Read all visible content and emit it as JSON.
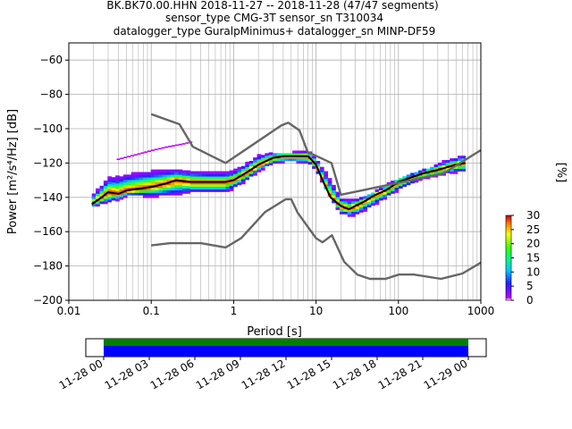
{
  "title": {
    "line1": "BK.BK70.00.HHN   2018-11-27 -- 2018-11-28  (47/47 segments)",
    "line2": "sensor_type CMG-3T sensor_sn T310034",
    "line3": "datalogger_type GuralpMinimus+ datalogger_sn MINP-DF59"
  },
  "colorbar": {
    "label": "[%]",
    "ticks": [
      "0",
      "5",
      "10",
      "15",
      "20",
      "25",
      "30"
    ],
    "range": [
      0,
      30
    ]
  },
  "timeline": {
    "tick_labels": [
      "11-28 00",
      "11-28 03",
      "11-28 06",
      "11-28 09",
      "11-28 12",
      "11-28 15",
      "11-28 18",
      "11-28 21",
      "11-29 00"
    ],
    "bar_colors": {
      "coverage": "#0000ff",
      "gaps_top": "#008000"
    }
  },
  "chart_data": {
    "type": "heatmap",
    "subtype": "probabilistic power spectral density",
    "xlabel": "Period [s]",
    "ylabel": "Power [m²/s⁴/Hz] [dB]",
    "xscale": "log",
    "xlim": [
      0.01,
      1000
    ],
    "ylim": [
      -200,
      -50
    ],
    "x_tick_labels": [
      "0.01",
      "0.1",
      "1",
      "10",
      "100",
      "1000"
    ],
    "x_ticks": [
      0.01,
      0.1,
      1,
      10,
      100,
      1000
    ],
    "y_ticks": [
      -200,
      -180,
      -160,
      -140,
      -120,
      -100,
      -80,
      -60
    ],
    "y_tick_labels": [
      "−200",
      "−180",
      "−160",
      "−140",
      "−120",
      "−100",
      "−80",
      "−60"
    ],
    "grid": true,
    "series": [
      {
        "role": "mode",
        "color": "#000000",
        "x": [
          0.019,
          0.025,
          0.03,
          0.04,
          0.05,
          0.07,
          0.1,
          0.15,
          0.2,
          0.3,
          0.5,
          0.8,
          1.0,
          1.5,
          2,
          3,
          4,
          5,
          6,
          8,
          10,
          12,
          15,
          20,
          25,
          30,
          40,
          50,
          70,
          100,
          150,
          200,
          300,
          500,
          650
        ],
        "y": [
          -144,
          -140,
          -137,
          -138,
          -136,
          -135,
          -134,
          -132,
          -130,
          -131,
          -131,
          -131,
          -130,
          -125,
          -121,
          -117,
          -116,
          -116,
          -116,
          -116,
          -121,
          -130,
          -140,
          -145,
          -147,
          -145,
          -142,
          -139,
          -136,
          -131,
          -128,
          -126,
          -124,
          -121,
          -120
        ]
      },
      {
        "role": "nhnm",
        "color": "#666666",
        "x": [
          0.1,
          0.22,
          0.32,
          0.8,
          3.8,
          4.6,
          6.3,
          7.9,
          15.4,
          20,
          354.8,
          1000
        ],
        "y": [
          -91.5,
          -97.4,
          -110.5,
          -120,
          -98,
          -96.5,
          -101,
          -113.5,
          -120,
          -138.5,
          -126,
          -112.5
        ]
      },
      {
        "role": "nlnm",
        "color": "#666666",
        "x": [
          0.1,
          0.17,
          0.4,
          0.8,
          1.24,
          2.4,
          4.3,
          5,
          6,
          10,
          12,
          15.6,
          21.9,
          31.6,
          45,
          70,
          101,
          154,
          328,
          600,
          1000
        ],
        "y": [
          -168,
          -166.7,
          -166.7,
          -169.2,
          -163.7,
          -148.6,
          -141.1,
          -141.1,
          -149,
          -163.8,
          -166.2,
          -162.1,
          -177.5,
          -185,
          -187.5,
          -187.5,
          -185,
          -185,
          -187.5,
          -184.4,
          -178
        ]
      }
    ],
    "density": {
      "lower_edge": {
        "x": [
          0.019,
          0.03,
          0.05,
          0.1,
          0.2,
          0.3,
          0.5,
          0.8,
          1.0,
          1.5,
          2,
          3,
          5,
          8,
          10,
          15,
          20,
          30,
          50,
          100,
          200,
          400,
          650
        ],
        "y": [
          -146,
          -145,
          -140,
          -141,
          -141,
          -139,
          -139,
          -139,
          -136,
          -131,
          -126,
          -121,
          -120,
          -121,
          -125,
          -140,
          -151,
          -152,
          -146,
          -137,
          -130,
          -127,
          -126
        ]
      },
      "upper_edge": {
        "x": [
          0.019,
          0.03,
          0.05,
          0.1,
          0.2,
          0.3,
          0.5,
          0.8,
          1.0,
          1.5,
          2,
          3,
          5,
          8,
          10,
          15,
          20,
          30,
          50,
          100,
          200,
          400,
          650
        ],
        "y": [
          -138,
          -126,
          -124,
          -122,
          -122,
          -123,
          -124,
          -124,
          -123,
          -118,
          -114,
          -113,
          -113,
          -112,
          -116,
          -127,
          -139,
          -140,
          -136,
          -128,
          -123,
          -117,
          -114
        ]
      },
      "outlier_band": {
        "x": [
          0.04,
          0.07,
          0.1,
          0.15,
          0.25,
          0.3
        ],
        "y": [
          -118,
          -115,
          -113,
          -111,
          -109,
          -108
        ]
      },
      "max_percent": 30
    }
  }
}
